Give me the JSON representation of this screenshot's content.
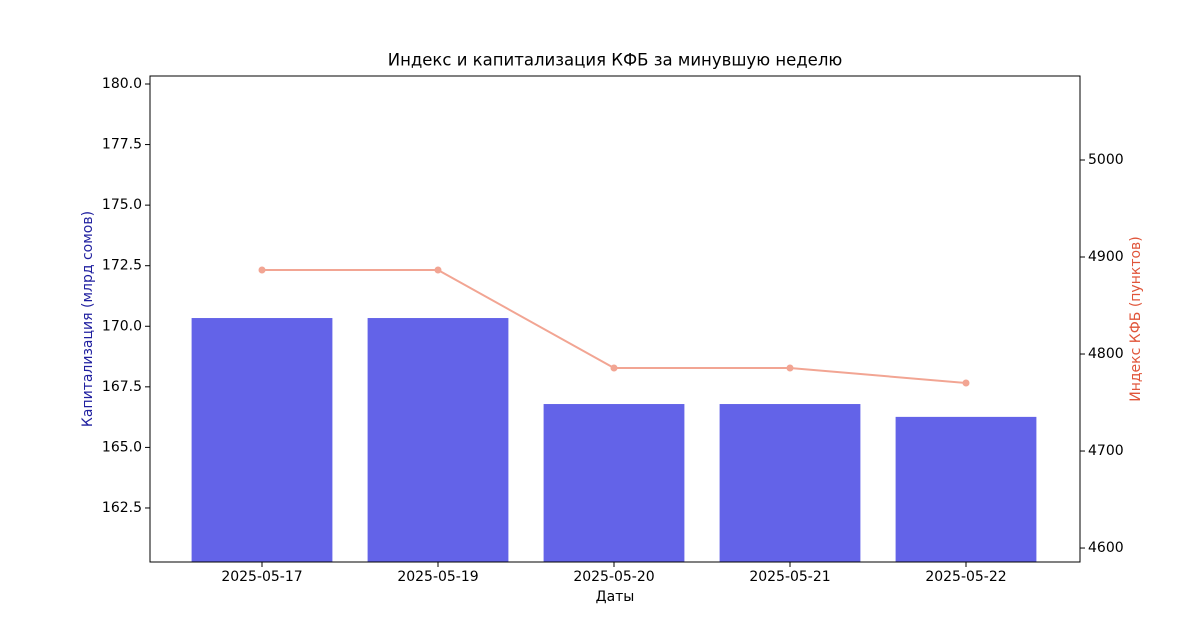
{
  "chart_data": {
    "type": "bar_line",
    "title": "Индекс и капитализация КФБ за минувшую неделю",
    "xlabel": "Даты",
    "ylabel": "Капитализация (млрд сомов)",
    "y2label": "Индекс КФБ (пунктов)",
    "categories": [
      "2025-05-17",
      "2025-05-19",
      "2025-05-20",
      "2025-05-21",
      "2025-05-22"
    ],
    "series": [
      {
        "name": "Капитализация",
        "type": "bar",
        "color": "#6363e8",
        "values": [
          170.34,
          170.34,
          166.79,
          166.79,
          166.26
        ]
      },
      {
        "name": "Индекс КФБ",
        "type": "line",
        "axis": "y2",
        "color": "#f2a593",
        "values": [
          4886.6,
          4886.6,
          4785.6,
          4785.6,
          4770.1
        ]
      }
    ],
    "ylim": [
      160.27,
      180.33
    ],
    "yticks": [
      162.5,
      {
        "value": 165,
        "label": "165.0"
      },
      167.5,
      {
        "value": 170,
        "label": "170.0"
      },
      172.5,
      {
        "value": 175,
        "label": "175.0"
      },
      177.5,
      {
        "value": 180,
        "label": "180.0"
      }
    ],
    "y2lim": [
      4585.6,
      5086.6
    ],
    "y2ticks": [
      4600,
      4700,
      4800,
      4900,
      5000
    ],
    "ylabel_color": "#1f1f9f",
    "y2label_color": "#e0553a"
  }
}
